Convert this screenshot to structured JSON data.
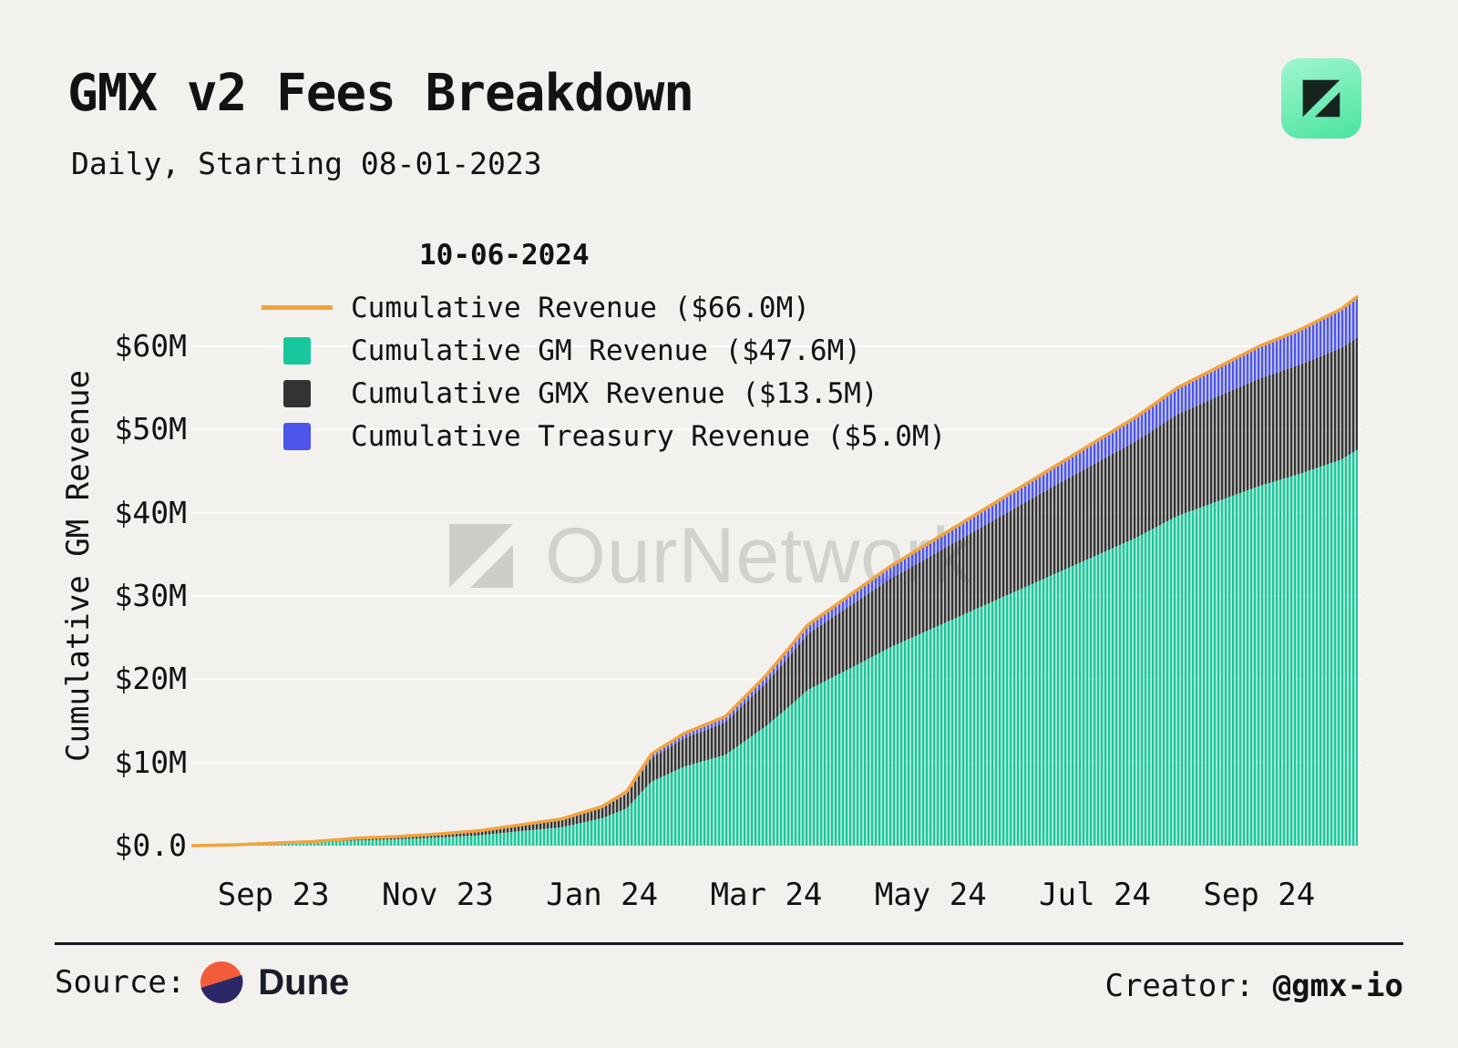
{
  "header": {
    "title": "GMX v2 Fees Breakdown",
    "subtitle": "Daily, Starting 08-01-2023"
  },
  "theme": {
    "background": "#F2F1EE",
    "grid": "#FFFFFF",
    "text": "#121212",
    "logo_gradient_start": "#9FF7CF",
    "logo_gradient_end": "#4AE3A0"
  },
  "chart": {
    "date_label": "10-06-2024",
    "y_axis_label": "Cumulative GM Revenue",
    "legend": [
      {
        "label": "Cumulative Revenue ($66.0M)",
        "type": "line",
        "color": "#F2A33C"
      },
      {
        "label": "Cumulative GM Revenue ($47.6M)",
        "type": "square",
        "color": "#18C89C"
      },
      {
        "label": "Cumulative GMX Revenue ($13.5M)",
        "type": "square",
        "color": "#333333"
      },
      {
        "label": "Cumulative Treasury Revenue ($5.0M)",
        "type": "square",
        "color": "#4D55EA"
      }
    ],
    "y_ticks": [
      "$0.0",
      "$10M",
      "$20M",
      "$30M",
      "$40M",
      "$50M",
      "$60M"
    ],
    "x_ticks": [
      "Sep 23",
      "Nov 23",
      "Jan 24",
      "Mar 24",
      "May 24",
      "Jul 24",
      "Sep 24"
    ]
  },
  "watermark": {
    "text": "OurNetwork"
  },
  "footer": {
    "source_label": "Source:",
    "source_name": "Dune",
    "creator_label": "Creator: ",
    "creator_name": "@gmx-io"
  },
  "chart_data": {
    "type": "area",
    "stacked": true,
    "title": "GMX v2 Fees Breakdown",
    "subtitle": "Daily, Starting 08-01-2023",
    "as_of_date": "10-06-2024",
    "ylabel": "Cumulative GM Revenue",
    "ylim": [
      0,
      66
    ],
    "grid": true,
    "legend_position": "top-left",
    "x_unit": "months since 2023-08-01",
    "x": [
      0,
      0.5,
      1,
      1.5,
      2,
      2.5,
      3,
      3.5,
      4,
      4.5,
      5,
      5.3,
      5.6,
      6,
      6.5,
      7,
      7.3,
      7.5,
      8,
      8.5,
      9,
      9.5,
      10,
      10.5,
      11,
      11.5,
      12,
      12.5,
      13,
      13.5,
      14,
      14.2
    ],
    "series": [
      {
        "name": "Cumulative GM Revenue",
        "total_label": "$47.6M",
        "color": "#18C89C",
        "values": [
          0,
          0.07,
          0.21,
          0.35,
          0.63,
          0.77,
          0.98,
          1.25,
          1.75,
          2.2,
          3.3,
          4.5,
          7.7,
          9.5,
          10.9,
          14.4,
          16.9,
          18.7,
          21.2,
          23.8,
          26.0,
          28.2,
          30.4,
          32.6,
          34.8,
          37.0,
          39.6,
          41.4,
          43.2,
          44.7,
          46.4,
          47.6
        ]
      },
      {
        "name": "Cumulative GMX Revenue",
        "total_label": "$13.5M",
        "color": "#333333",
        "values": [
          0,
          0.03,
          0.09,
          0.15,
          0.25,
          0.3,
          0.38,
          0.48,
          0.65,
          0.85,
          1.2,
          1.7,
          2.8,
          3.4,
          3.9,
          5.2,
          6.1,
          6.7,
          7.5,
          8.2,
          8.8,
          9.4,
          10.0,
          10.6,
          11.1,
          11.6,
          12.2,
          12.6,
          12.9,
          13.1,
          13.4,
          13.5
        ]
      },
      {
        "name": "Cumulative Treasury Revenue",
        "total_label": "$5.0M",
        "color": "#4D55EA",
        "values": [
          0,
          0,
          0,
          0,
          0.02,
          0.03,
          0.04,
          0.07,
          0.1,
          0.15,
          0.2,
          0.3,
          0.5,
          0.6,
          0.7,
          0.9,
          1.0,
          1.1,
          1.3,
          1.5,
          1.7,
          1.9,
          2.1,
          2.3,
          2.6,
          2.9,
          3.2,
          3.5,
          3.9,
          4.2,
          4.7,
          5.0
        ]
      },
      {
        "name": "Cumulative Revenue",
        "total_label": "$66.0M",
        "color": "#F2A33C",
        "type": "line",
        "values": [
          0,
          0.1,
          0.3,
          0.5,
          0.9,
          1.1,
          1.4,
          1.8,
          2.5,
          3.2,
          4.7,
          6.5,
          11.0,
          13.5,
          15.5,
          20.5,
          24.0,
          26.5,
          30.0,
          33.5,
          36.5,
          39.5,
          42.5,
          45.5,
          48.5,
          51.5,
          55.0,
          57.5,
          60.0,
          62.0,
          64.5,
          66.0
        ]
      }
    ],
    "y_tick_values": [
      0,
      10,
      20,
      30,
      40,
      50,
      60
    ],
    "x_tick_positions": [
      1,
      3,
      5,
      7,
      9,
      11,
      13
    ],
    "x_tick_labels": [
      "Sep 23",
      "Nov 23",
      "Jan 24",
      "Mar 24",
      "May 24",
      "Jul 24",
      "Sep 24"
    ]
  }
}
